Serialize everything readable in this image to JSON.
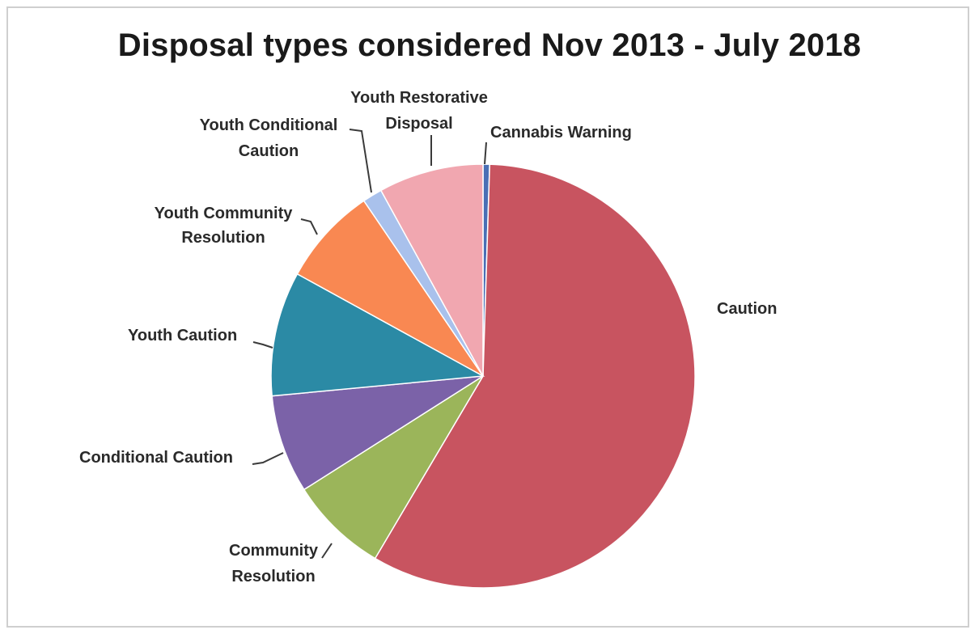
{
  "chart_data": {
    "type": "pie",
    "title": "Disposal types considered Nov 2013 - July 2018",
    "start_angle_deg": 0,
    "direction": "clockwise",
    "slices": [
      {
        "label": "Cannabis Warning",
        "value": 0.5,
        "color": "#4a6fb5"
      },
      {
        "label": "Caution",
        "value": 58.0,
        "color": "#c85460"
      },
      {
        "label": "Community Resolution",
        "value": 7.5,
        "color": "#9bb55a"
      },
      {
        "label": "Conditional Caution",
        "value": 7.5,
        "color": "#7b62a8"
      },
      {
        "label": "Youth Caution",
        "value": 9.5,
        "color": "#2b8aa5"
      },
      {
        "label": "Youth Community Resolution",
        "value": 7.5,
        "color": "#f98852"
      },
      {
        "label": "Youth Conditional Caution",
        "value": 1.5,
        "color": "#a9c1ec"
      },
      {
        "label": "Youth Restorative Disposal",
        "value": 8.0,
        "color": "#f1a7b0"
      }
    ]
  }
}
